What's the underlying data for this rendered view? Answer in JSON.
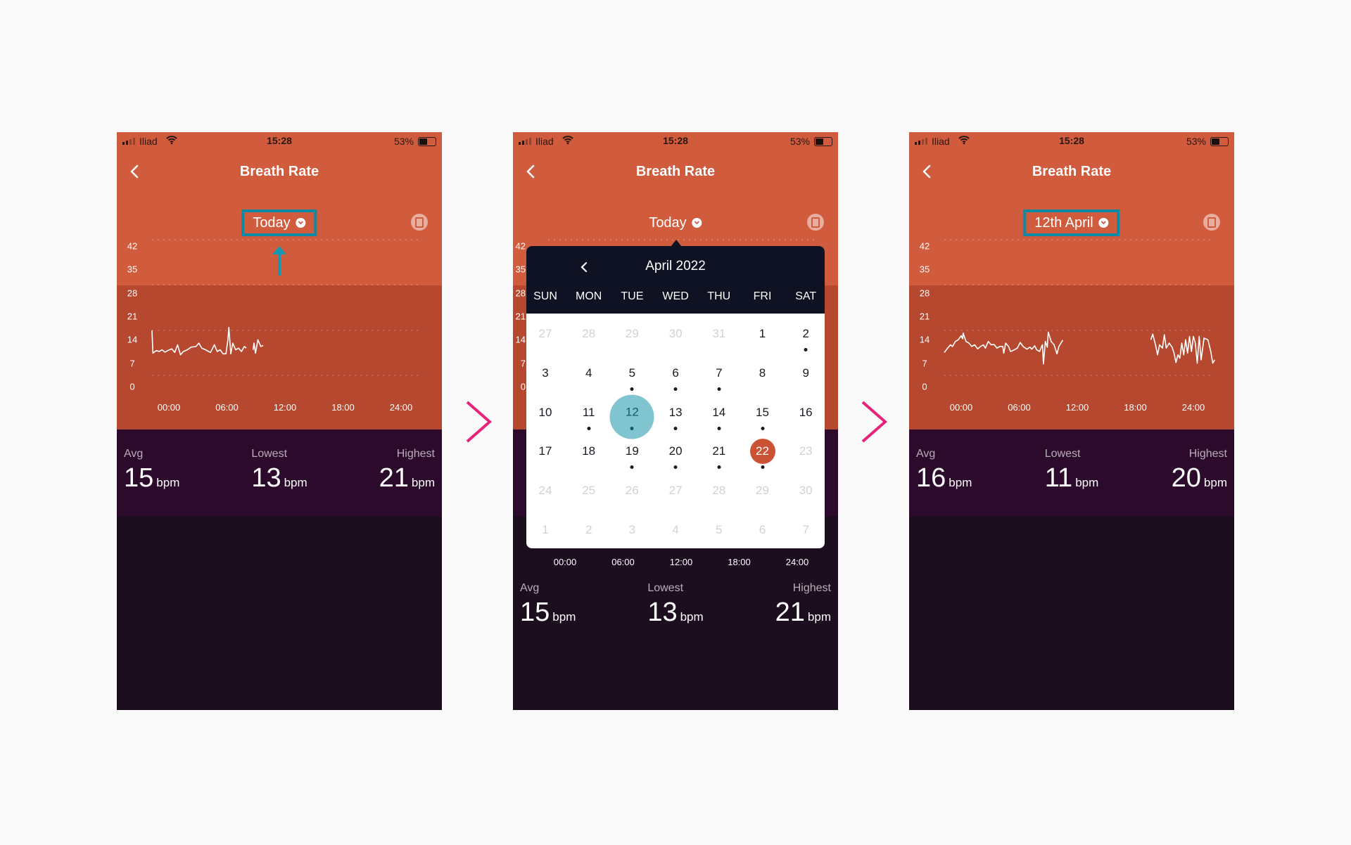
{
  "colors": {
    "header": "#d05b3d",
    "chart_bg": "#b5482f",
    "stats_bg": "#2c0a2c",
    "body_bg": "#1c0d1f",
    "highlight": "#0b8aa6",
    "next_arrow": "#e8217a",
    "selected_day": "#7fc4cf",
    "today_day": "#cc5236"
  },
  "panels": [
    {
      "status": {
        "carrier": "Iliad",
        "time": "15:28",
        "battery": "53%",
        "battery_level": 0.53
      },
      "title": "Breath Rate",
      "date_label": "Today",
      "date_highlighted": true,
      "show_up_arrow": true,
      "stats": [
        {
          "label": "Avg",
          "value": "15",
          "unit": "bpm"
        },
        {
          "label": "Lowest",
          "value": "13",
          "unit": "bpm"
        },
        {
          "label": "Highest",
          "value": "21",
          "unit": "bpm"
        }
      ],
      "chart_data": {
        "type": "line",
        "y_ticks": [
          "42",
          "35",
          "28",
          "21",
          "14",
          "7",
          "0"
        ],
        "x_ticks": [
          "00:00",
          "06:00",
          "12:00",
          "18:00",
          "24:00"
        ],
        "ylim": [
          0,
          42
        ],
        "segments": [
          [
            [
              -1.75,
              16.8
            ],
            [
              -1.65,
              10
            ],
            [
              -1.3,
              10.8
            ],
            [
              -1,
              10.5
            ],
            [
              -0.7,
              11
            ],
            [
              -0.4,
              10.3
            ],
            [
              -0.1,
              10.8
            ],
            [
              0.3,
              11.3
            ],
            [
              0.6,
              10.2
            ],
            [
              0.9,
              12.5
            ],
            [
              1.2,
              9.5
            ],
            [
              1.5,
              10.5
            ],
            [
              1.9,
              11
            ],
            [
              2.3,
              11.8
            ],
            [
              2.8,
              12
            ],
            [
              3.1,
              13
            ],
            [
              3.4,
              11.5
            ],
            [
              3.8,
              11
            ],
            [
              4.3,
              10.2
            ],
            [
              4.7,
              12.5
            ],
            [
              5.0,
              10.5
            ],
            [
              5.3,
              11
            ],
            [
              5.6,
              9.8
            ],
            [
              5.9,
              9.8
            ],
            [
              6.1,
              14
            ],
            [
              6.2,
              17.7
            ],
            [
              6.4,
              9.8
            ],
            [
              6.6,
              13
            ],
            [
              6.9,
              11
            ],
            [
              7.2,
              11.5
            ],
            [
              7.5,
              10.5
            ],
            [
              7.8,
              12
            ],
            [
              8.0,
              11.5
            ]
          ],
          [
            [
              8.7,
              11
            ],
            [
              8.8,
              13
            ],
            [
              8.95,
              10
            ],
            [
              9.2,
              14
            ],
            [
              9.5,
              12
            ],
            [
              9.75,
              12.3
            ]
          ]
        ]
      }
    },
    {
      "status": {
        "carrier": "Iliad",
        "time": "15:28",
        "battery": "53%",
        "battery_level": 0.53
      },
      "title": "Breath Rate",
      "date_label": "Today",
      "date_highlighted": false,
      "show_up_arrow": false,
      "stats": [
        {
          "label": "Avg",
          "value": "15",
          "unit": "bpm"
        },
        {
          "label": "Lowest",
          "value": "13",
          "unit": "bpm"
        },
        {
          "label": "Highest",
          "value": "21",
          "unit": "bpm"
        }
      ],
      "chart_data": {
        "type": "line",
        "y_ticks": [
          "42",
          "35",
          "28",
          "21",
          "14",
          "7",
          "0"
        ],
        "x_ticks": [
          "00:00",
          "06:00",
          "12:00",
          "18:00",
          "24:00"
        ],
        "ylim": [
          0,
          42
        ],
        "segments": []
      },
      "calendar": {
        "month_label": "April 2022",
        "weekdays": [
          "SUN",
          "MON",
          "TUE",
          "WED",
          "THU",
          "FRI",
          "SAT"
        ],
        "weeks": [
          [
            {
              "d": "27",
              "m": true
            },
            {
              "d": "28",
              "m": true
            },
            {
              "d": "29",
              "m": true
            },
            {
              "d": "30",
              "m": true
            },
            {
              "d": "31",
              "m": true
            },
            {
              "d": "1"
            },
            {
              "d": "2",
              "dot": true
            }
          ],
          [
            {
              "d": "3"
            },
            {
              "d": "4"
            },
            {
              "d": "5",
              "dot": true
            },
            {
              "d": "6",
              "dot": true
            },
            {
              "d": "7",
              "dot": true
            },
            {
              "d": "8"
            },
            {
              "d": "9"
            }
          ],
          [
            {
              "d": "10"
            },
            {
              "d": "11",
              "dot": true
            },
            {
              "d": "12",
              "dot": true,
              "selected": true
            },
            {
              "d": "13",
              "dot": true
            },
            {
              "d": "14",
              "dot": true
            },
            {
              "d": "15",
              "dot": true
            },
            {
              "d": "16"
            }
          ],
          [
            {
              "d": "17"
            },
            {
              "d": "18"
            },
            {
              "d": "19",
              "dot": true
            },
            {
              "d": "20",
              "dot": true
            },
            {
              "d": "21",
              "dot": true
            },
            {
              "d": "22",
              "dot": true,
              "today": true
            },
            {
              "d": "23",
              "m": true
            }
          ],
          [
            {
              "d": "24",
              "m": true
            },
            {
              "d": "25",
              "m": true
            },
            {
              "d": "26",
              "m": true
            },
            {
              "d": "27",
              "m": true
            },
            {
              "d": "28",
              "m": true
            },
            {
              "d": "29",
              "m": true
            },
            {
              "d": "30",
              "m": true
            }
          ],
          [
            {
              "d": "1",
              "m": true
            },
            {
              "d": "2",
              "m": true
            },
            {
              "d": "3",
              "m": true
            },
            {
              "d": "4",
              "m": true
            },
            {
              "d": "5",
              "m": true
            },
            {
              "d": "6",
              "m": true
            },
            {
              "d": "7",
              "m": true
            }
          ]
        ]
      }
    },
    {
      "status": {
        "carrier": "Iliad",
        "time": "15:28",
        "battery": "53%",
        "battery_level": 0.53
      },
      "title": "Breath Rate",
      "date_label": "12th April",
      "date_highlighted": true,
      "show_up_arrow": false,
      "stats": [
        {
          "label": "Avg",
          "value": "16",
          "unit": "bpm"
        },
        {
          "label": "Lowest",
          "value": "11",
          "unit": "bpm"
        },
        {
          "label": "Highest",
          "value": "20",
          "unit": "bpm"
        }
      ],
      "chart_data": {
        "type": "line",
        "y_ticks": [
          "42",
          "35",
          "28",
          "21",
          "14",
          "7",
          "0"
        ],
        "x_ticks": [
          "00:00",
          "06:00",
          "12:00",
          "18:00",
          "24:00"
        ],
        "ylim": [
          0,
          42
        ],
        "segments": [
          [
            [
              -1.75,
              10.2
            ],
            [
              -1.4,
              11.5
            ],
            [
              -1.1,
              12.5
            ],
            [
              -0.9,
              12
            ],
            [
              -0.6,
              13.5
            ],
            [
              -0.3,
              14
            ],
            [
              0,
              15.2
            ],
            [
              0.15,
              14.3
            ],
            [
              0.2,
              16
            ],
            [
              0.5,
              13.5
            ],
            [
              0.8,
              13
            ],
            [
              1.1,
              12
            ],
            [
              1.4,
              12.5
            ],
            [
              1.7,
              11.3
            ],
            [
              2.0,
              12
            ],
            [
              2.3,
              12.5
            ],
            [
              2.5,
              11.5
            ],
            [
              2.8,
              13.5
            ],
            [
              3.1,
              12.5
            ],
            [
              3.4,
              12.6
            ],
            [
              3.7,
              11.5
            ],
            [
              4.0,
              12
            ],
            [
              4.3,
              12
            ],
            [
              4.4,
              10
            ],
            [
              4.6,
              13
            ],
            [
              4.9,
              12
            ],
            [
              5.1,
              10.5
            ],
            [
              5.5,
              11
            ],
            [
              5.8,
              11.5
            ],
            [
              6.1,
              13.2
            ],
            [
              6.4,
              12
            ],
            [
              6.8,
              11.2
            ],
            [
              7.1,
              11.8
            ],
            [
              7.3,
              11.2
            ],
            [
              7.6,
              12.2
            ],
            [
              7.8,
              11
            ],
            [
              8.1,
              10.5
            ],
            [
              8.4,
              12.5
            ],
            [
              8.5,
              6.8
            ],
            [
              8.7,
              13.5
            ],
            [
              8.9,
              11.8
            ],
            [
              9.0,
              16.3
            ],
            [
              9.3,
              13.5
            ],
            [
              9.6,
              12.5
            ],
            [
              9.9,
              9.8
            ],
            [
              10.1,
              12
            ],
            [
              10.5,
              13.9
            ]
          ],
          [
            [
              19.6,
              14
            ],
            [
              19.8,
              15.7
            ],
            [
              20.1,
              12.3
            ],
            [
              20.3,
              9.5
            ],
            [
              20.5,
              12.5
            ],
            [
              20.8,
              11.5
            ],
            [
              21.0,
              15.5
            ],
            [
              21.2,
              11.5
            ],
            [
              21.5,
              13
            ],
            [
              21.8,
              11.8
            ],
            [
              22.0,
              10
            ],
            [
              22.2,
              7.2
            ],
            [
              22.4,
              9.5
            ],
            [
              22.6,
              8.5
            ],
            [
              22.8,
              13
            ],
            [
              23.0,
              9.5
            ],
            [
              23.2,
              14
            ],
            [
              23.4,
              10
            ],
            [
              23.6,
              15
            ],
            [
              23.8,
              10.5
            ],
            [
              24.0,
              15
            ],
            [
              24.2,
              13
            ],
            [
              24.4,
              7
            ],
            [
              24.6,
              15
            ],
            [
              24.8,
              8
            ],
            [
              25.1,
              14.5
            ],
            [
              25.5,
              14
            ],
            [
              25.8,
              10.5
            ],
            [
              26.0,
              7
            ],
            [
              26.2,
              8
            ]
          ]
        ]
      }
    }
  ]
}
